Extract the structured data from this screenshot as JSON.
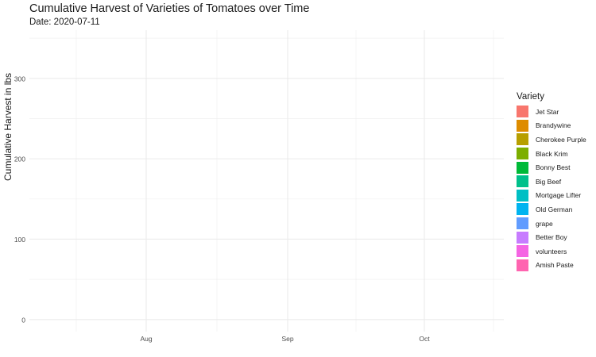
{
  "chart_data": {
    "type": "line",
    "title": "Cumulative Harvest of Varieties of Tomatoes over Time",
    "subtitle": "Date: 2020-07-11",
    "xlabel": "",
    "ylabel": "Cumulative Harvest in lbs",
    "x_ticks": [
      "Aug",
      "Sep",
      "Oct"
    ],
    "y_ticks": [
      0,
      100,
      200,
      300
    ],
    "ylim": [
      -15,
      360
    ],
    "grid": true,
    "legend_title": "Variety",
    "legend_position": "right",
    "series": [
      {
        "name": "Jet Star",
        "color": "#F8766D",
        "values": []
      },
      {
        "name": "Brandywine",
        "color": "#DE8C00",
        "values": []
      },
      {
        "name": "Cherokee Purple",
        "color": "#B79F00",
        "values": []
      },
      {
        "name": "Black Krim",
        "color": "#7CAE00",
        "values": []
      },
      {
        "name": "Bonny Best",
        "color": "#00BA38",
        "values": []
      },
      {
        "name": "Big Beef",
        "color": "#00C08B",
        "values": []
      },
      {
        "name": "Mortgage Lifter",
        "color": "#00BFC4",
        "values": []
      },
      {
        "name": "Old German",
        "color": "#00B4F0",
        "values": []
      },
      {
        "name": "grape",
        "color": "#619CFF",
        "values": []
      },
      {
        "name": "Better Boy",
        "color": "#C77CFF",
        "values": []
      },
      {
        "name": "volunteers",
        "color": "#F564E3",
        "values": []
      },
      {
        "name": "Amish Paste",
        "color": "#FF64B0",
        "values": []
      }
    ]
  }
}
